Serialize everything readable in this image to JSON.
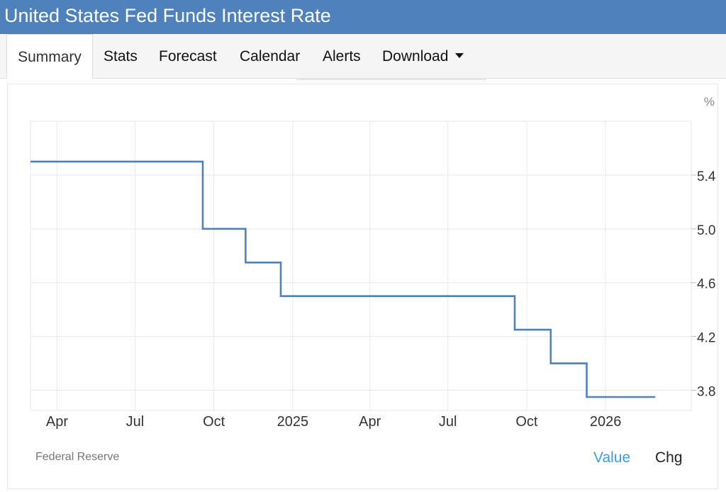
{
  "header": {
    "title": "United States Fed Funds Interest Rate"
  },
  "tabs": [
    {
      "label": "Summary",
      "active": true
    },
    {
      "label": "Stats"
    },
    {
      "label": "Forecast"
    },
    {
      "label": "Calendar"
    },
    {
      "label": "Alerts"
    },
    {
      "label": "Download",
      "icon": "caret-down-icon"
    }
  ],
  "chart_data": {
    "type": "line",
    "step": true,
    "title": "",
    "xlabel": "",
    "ylabel": "%",
    "ylim": [
      3.65,
      5.8
    ],
    "xlim": [
      "2024-03-01",
      "2026-04-11"
    ],
    "grid": true,
    "line_color": "#4f81bd",
    "y_ticks": [
      3.8,
      4.2,
      4.6,
      5.0,
      5.4
    ],
    "y_tick_labels": [
      "3.8",
      "4.2",
      "4.6",
      "5.0",
      "5.4"
    ],
    "x_ticks": [
      {
        "label": "Apr",
        "date": "2024-04-01"
      },
      {
        "label": "Jul",
        "date": "2024-07-01"
      },
      {
        "label": "Oct",
        "date": "2024-10-01"
      },
      {
        "label": "2025",
        "date": "2025-01-01"
      },
      {
        "label": "Apr",
        "date": "2025-04-01"
      },
      {
        "label": "Jul",
        "date": "2025-07-01"
      },
      {
        "label": "Oct",
        "date": "2025-10-01"
      },
      {
        "label": "2026",
        "date": "2026-01-01"
      }
    ],
    "series": [
      {
        "points": [
          {
            "x": "2024-03-01",
            "y": 5.5
          },
          {
            "x": "2024-09-18",
            "y": 5.0
          },
          {
            "x": "2024-11-07",
            "y": 4.75
          },
          {
            "x": "2024-12-18",
            "y": 4.5
          },
          {
            "x": "2025-09-17",
            "y": 4.25
          },
          {
            "x": "2025-10-29",
            "y": 4.0
          },
          {
            "x": "2025-12-10",
            "y": 3.75
          },
          {
            "x": "2026-02-28",
            "y": 3.75
          }
        ]
      }
    ]
  },
  "footer": {
    "source": "Federal Reserve",
    "value_label": "Value",
    "chg_label": "Chg"
  }
}
